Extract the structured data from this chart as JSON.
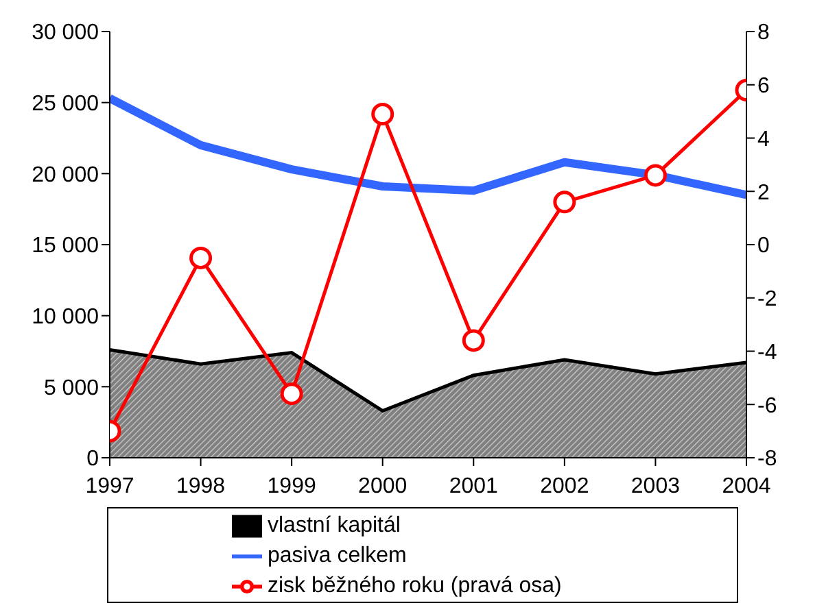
{
  "chart_data": {
    "type": "line",
    "x": [
      1997,
      1998,
      1999,
      2000,
      2001,
      2002,
      2003,
      2004
    ],
    "xlim": [
      1997,
      2004
    ],
    "xticks": [
      1997,
      1998,
      1999,
      2000,
      2001,
      2002,
      2003,
      2004
    ],
    "ylim": [
      0,
      30000
    ],
    "yticks": [
      {
        "value": 0,
        "label": "0"
      },
      {
        "value": 5000,
        "label": "5 000"
      },
      {
        "value": 10000,
        "label": "10 000"
      },
      {
        "value": 15000,
        "label": "15 000"
      },
      {
        "value": 20000,
        "label": "20 000"
      },
      {
        "value": 25000,
        "label": "25 000"
      },
      {
        "value": 30000,
        "label": "30 000"
      }
    ],
    "y2lim": [
      -8,
      8
    ],
    "y2ticks": [
      -8,
      -6,
      -4,
      -2,
      0,
      2,
      4,
      6,
      8
    ],
    "series": [
      {
        "name": "vlastní kapitál",
        "type": "area",
        "color": "#808080",
        "values": [
          7600,
          6600,
          7400,
          3300,
          5800,
          6900,
          5900,
          6700
        ]
      },
      {
        "name": "pasiva celkem",
        "color": "#3366ff",
        "marker": "none",
        "values": [
          25300,
          22000,
          20300,
          19100,
          18800,
          20800,
          19900,
          18500
        ]
      },
      {
        "name": "zisk běžného roku (pravá osa)",
        "color": "#ff0000",
        "marker": "circle",
        "axis": "y2",
        "values": [
          -7.0,
          -0.5,
          -5.6,
          4.9,
          -3.6,
          1.6,
          2.6,
          5.8
        ]
      }
    ],
    "legend": "bottom"
  }
}
